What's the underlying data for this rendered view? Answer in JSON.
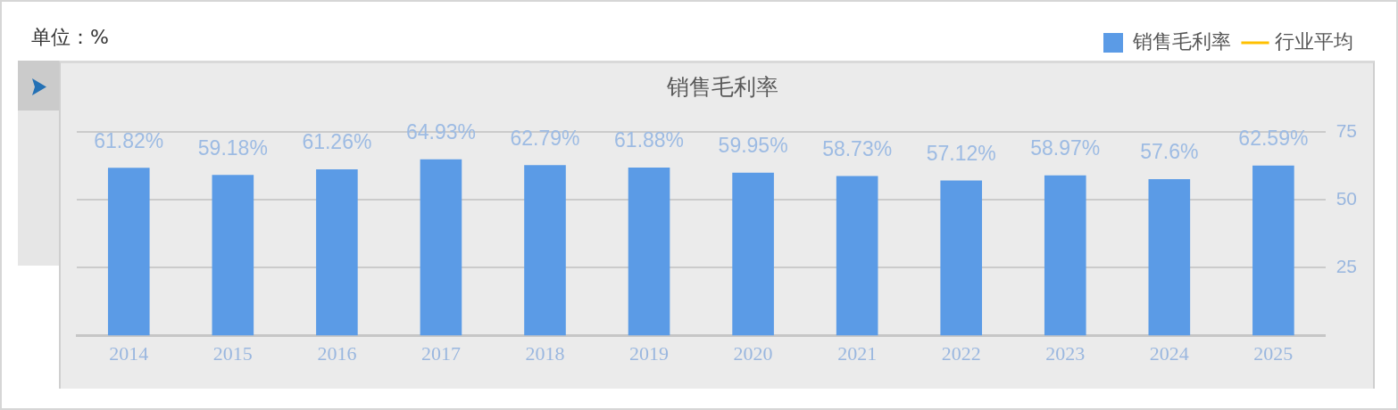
{
  "chart_data": {
    "type": "bar",
    "title": "销售毛利率",
    "annotations": [
      "单位：%"
    ],
    "categories": [
      "2014",
      "2015",
      "2016",
      "2017",
      "2018",
      "2019",
      "2020",
      "2021",
      "2022",
      "2023",
      "2024",
      "2025"
    ],
    "series": [
      {
        "name": "销售毛利率",
        "color": "#5b9be6",
        "values": [
          61.82,
          59.18,
          61.26,
          64.93,
          62.79,
          61.88,
          59.95,
          58.73,
          57.12,
          58.97,
          57.6,
          62.59
        ],
        "value_labels": [
          "61.82%",
          "59.18%",
          "61.26%",
          "64.93%",
          "62.79%",
          "61.88%",
          "59.95%",
          "58.73%",
          "57.12%",
          "58.97%",
          "57.6%",
          "62.59%"
        ]
      },
      {
        "name": "行业平均",
        "type": "line",
        "color": "#ffc000",
        "values": [
          null,
          null,
          null,
          null,
          null,
          null,
          null,
          null,
          null,
          null,
          null,
          null
        ]
      }
    ],
    "ylim": [
      0,
      75
    ],
    "yticks": [
      25,
      50,
      75
    ],
    "grid": "y",
    "legend": "top right"
  }
}
